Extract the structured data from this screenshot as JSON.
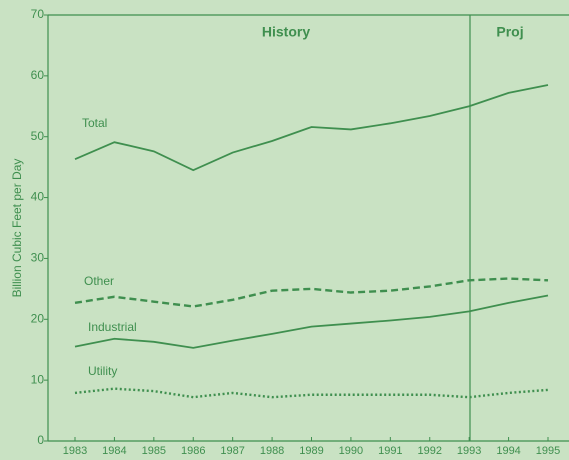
{
  "chart_data": {
    "type": "line",
    "y_axis_label": "Billion Cubic Feet per Day",
    "annotations": [
      "History",
      "Proj"
    ],
    "categories": [
      "1983",
      "1984",
      "1985",
      "1986",
      "1987",
      "1988",
      "1989",
      "1990",
      "1991",
      "1992",
      "1993",
      "1994",
      "1995"
    ],
    "ylim": [
      0,
      70
    ],
    "yticks": [
      0,
      10,
      20,
      30,
      40,
      50,
      60,
      70
    ],
    "series": [
      {
        "name": "Total",
        "color": "#3f8f4f",
        "dash": "solid",
        "values": [
          46.3,
          49.1,
          47.6,
          44.5,
          47.4,
          49.3,
          51.6,
          51.2,
          52.2,
          53.4,
          55.0,
          57.2,
          58.5
        ]
      },
      {
        "name": "Other",
        "color": "#3f8f4f",
        "dash": "dashed",
        "values": [
          22.7,
          23.7,
          22.9,
          22.1,
          23.2,
          24.7,
          25.0,
          24.4,
          24.7,
          25.4,
          26.4,
          26.7,
          26.4
        ]
      },
      {
        "name": "Industrial",
        "color": "#3f8f4f",
        "dash": "solid",
        "values": [
          15.5,
          16.8,
          16.3,
          15.3,
          16.5,
          17.6,
          18.8,
          19.3,
          19.8,
          20.4,
          21.3,
          22.7,
          23.9
        ]
      },
      {
        "name": "Utility",
        "color": "#3f8f4f",
        "dash": "dotted",
        "values": [
          7.9,
          8.6,
          8.2,
          7.2,
          7.9,
          7.2,
          7.6,
          7.6,
          7.6,
          7.6,
          7.2,
          7.9,
          8.4
        ]
      }
    ]
  }
}
